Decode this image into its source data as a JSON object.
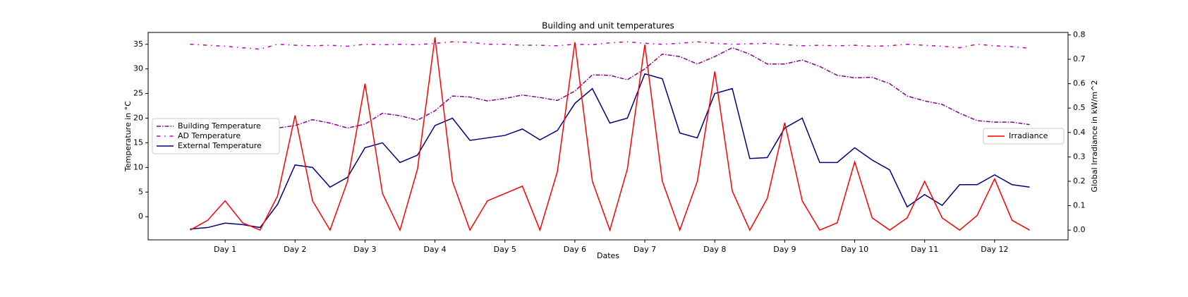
{
  "chart_data": {
    "type": "line",
    "title": "Building and unit temperatures",
    "x_label": "Dates",
    "y_label": "Temperature in °C",
    "y2_label": "Global Irradiance in kW/m^2",
    "x": [
      0.5,
      0.75,
      1,
      1.25,
      1.5,
      1.75,
      2,
      2.25,
      2.5,
      2.75,
      3,
      3.25,
      3.5,
      3.75,
      4,
      4.25,
      4.5,
      4.75,
      5,
      5.25,
      5.5,
      5.75,
      6,
      6.25,
      6.5,
      6.75,
      7,
      7.25,
      7.5,
      7.75,
      8,
      8.25,
      8.5,
      8.75,
      9,
      9.25,
      9.5,
      9.75,
      10,
      10.25,
      10.5,
      10.75,
      11,
      11.25,
      11.5,
      11.75,
      12,
      12.25,
      12.5
    ],
    "xlim": [
      -0.1,
      13.05
    ],
    "xticks": [
      {
        "value": 1,
        "label": "Day 1"
      },
      {
        "value": 2,
        "label": "Day 2"
      },
      {
        "value": 3,
        "label": "Day 3"
      },
      {
        "value": 4,
        "label": "Day 4"
      },
      {
        "value": 5,
        "label": "Day 5"
      },
      {
        "value": 6,
        "label": "Day 6"
      },
      {
        "value": 7,
        "label": "Day 7"
      },
      {
        "value": 8,
        "label": "Day 8"
      },
      {
        "value": 9,
        "label": "Day 9"
      },
      {
        "value": 10,
        "label": "Day 10"
      },
      {
        "value": 11,
        "label": "Day 11"
      },
      {
        "value": 12,
        "label": "Day 12"
      }
    ],
    "ylim": [
      -4.7,
      37.4
    ],
    "yticks": [
      0,
      5,
      10,
      15,
      20,
      25,
      30,
      35
    ],
    "y2lim": [
      -0.04,
      0.81
    ],
    "y2ticks": [
      {
        "value": 0,
        "label": "0.0"
      },
      0.1,
      0.2,
      0.3,
      0.4,
      0.5,
      0.6,
      0.7,
      0.8
    ],
    "legend": "center left",
    "legend2": "center right",
    "series": [
      {
        "name": "Building Temperature",
        "color": "#8b008b",
        "linestyle": "dashdot",
        "axis": "y",
        "values": [
          18.5,
          18.5,
          18.4,
          18.3,
          18.2,
          18,
          18.5,
          19.7,
          19,
          18,
          18.8,
          21,
          20.5,
          19.6,
          21.5,
          24.5,
          24.3,
          23.5,
          24,
          24.7,
          24.2,
          23.6,
          25.5,
          28.8,
          28.7,
          27.8,
          30,
          33,
          32.5,
          31,
          32.5,
          34.3,
          33,
          31,
          31,
          31.8,
          30.5,
          28.7,
          28.2,
          28.3,
          27,
          24.5,
          23.5,
          22.8,
          21,
          19.5,
          19.2,
          19.2,
          18.7
        ]
      },
      {
        "name": "AD Temperature",
        "color": "#bf00bf",
        "linestyle": "loosedashdot",
        "axis": "y",
        "values": [
          35,
          34.8,
          34.6,
          34.3,
          34,
          35,
          34.8,
          34.7,
          34.8,
          34.6,
          35,
          34.9,
          35,
          34.9,
          35.2,
          35.5,
          35.4,
          35,
          35,
          34.8,
          34.8,
          34.7,
          35,
          34.9,
          35.3,
          35.5,
          35.2,
          35,
          35.2,
          35.5,
          35.2,
          35,
          35.1,
          35.2,
          34.9,
          34.7,
          34.8,
          34.7,
          34.8,
          34.6,
          34.7,
          35,
          34.8,
          34.6,
          34.3,
          35,
          34.7,
          34.5,
          34.2
        ]
      },
      {
        "name": "External Temperature",
        "color": "#000080",
        "linestyle": "solid",
        "axis": "y",
        "values": [
          -2.5,
          -2.2,
          -1.3,
          -1.6,
          -2.2,
          2.5,
          10.5,
          10,
          6,
          8,
          14,
          15,
          11,
          12.5,
          18.5,
          20,
          15.5,
          16,
          16.5,
          17.8,
          15.6,
          17.5,
          23,
          26,
          19,
          20,
          29,
          28,
          17,
          16,
          25,
          26,
          11.8,
          12,
          18,
          20,
          11,
          11,
          14,
          11.5,
          9.5,
          2,
          4.5,
          2.3,
          6.5,
          6.5,
          8.5,
          6.5,
          6
        ]
      },
      {
        "name": "Irradiance",
        "color": "#ff0000",
        "linestyle": "solid",
        "axis": "y2",
        "values": [
          0,
          0.04,
          0.12,
          0.03,
          0,
          0.14,
          0.47,
          0.12,
          0,
          0.2,
          0.6,
          0.15,
          0,
          0.25,
          0.79,
          0.2,
          0,
          0.12,
          0.15,
          0.18,
          0,
          0.24,
          0.77,
          0.2,
          0,
          0.25,
          0.76,
          0.2,
          0,
          0.2,
          0.65,
          0.16,
          0,
          0.13,
          0.44,
          0.12,
          0,
          0.03,
          0.28,
          0.05,
          0,
          0.05,
          0.2,
          0.05,
          0,
          0.06,
          0.21,
          0.04,
          0
        ]
      }
    ]
  }
}
